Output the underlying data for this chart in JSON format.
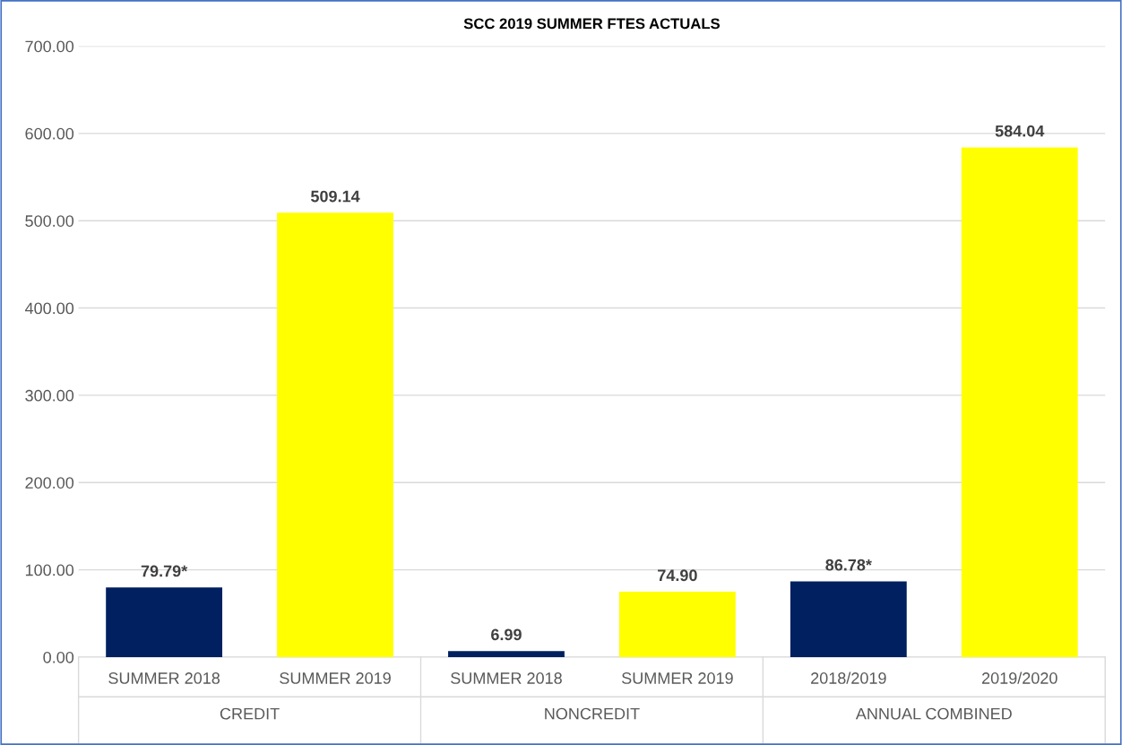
{
  "chart_data": {
    "type": "bar",
    "title": "SCC 2019 SUMMER FTES ACTUALS",
    "categories": [
      "SUMMER 2018",
      "SUMMER 2019",
      "SUMMER 2018",
      "SUMMER 2019",
      "2018/2019",
      "2019/2020"
    ],
    "values": [
      79.79,
      509.14,
      6.99,
      74.9,
      86.78,
      584.04
    ],
    "colors": [
      "#002060",
      "#ffff00",
      "#002060",
      "#ffff00",
      "#002060",
      "#ffff00"
    ],
    "value_labels": [
      "79.79*",
      "509.14",
      "6.99",
      "74.90",
      "86.78*",
      "584.04"
    ],
    "annotations": [
      "CREDIT",
      "NONCREDIT",
      "ANNUAL COMBINED"
    ],
    "ylim": [
      0,
      700
    ],
    "yticks": [
      {
        "value": 0,
        "label": "0.00"
      },
      {
        "value": 100,
        "label": "100.00"
      },
      {
        "value": 200,
        "label": "200.00"
      },
      {
        "value": 300,
        "label": "300.00"
      },
      {
        "value": 400,
        "label": "400.00"
      },
      {
        "value": 500,
        "label": "500.00"
      },
      {
        "value": 600,
        "label": "600.00"
      },
      {
        "value": 700,
        "label": "700.00"
      }
    ],
    "grid": "y",
    "legend": false
  }
}
